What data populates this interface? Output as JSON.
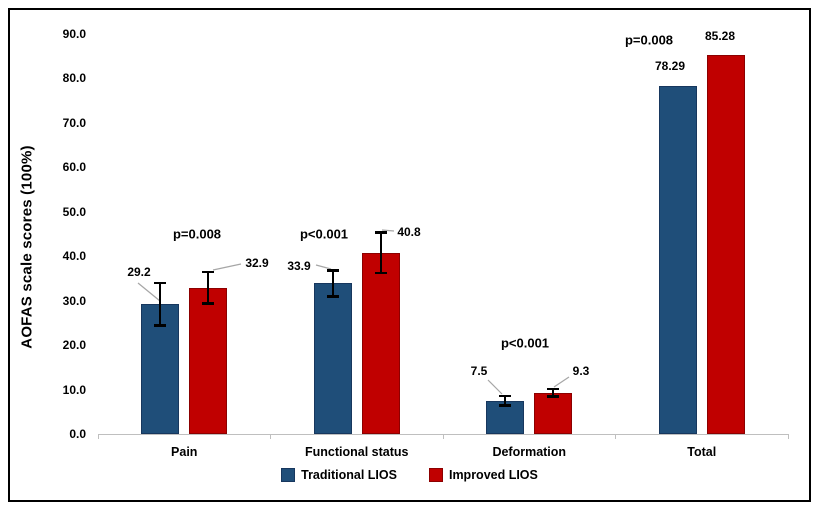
{
  "chart_data": {
    "type": "bar",
    "title": "",
    "xlabel": "",
    "ylabel": "AOFAS scale scores (100%)",
    "ylim": [
      0,
      90
    ],
    "ytick_step": 10,
    "yticks": [
      "0.0",
      "10.0",
      "20.0",
      "30.0",
      "40.0",
      "50.0",
      "60.0",
      "70.0",
      "80.0",
      "90.0"
    ],
    "categories": [
      "Pain",
      "Functional status",
      "Deformation",
      "Total"
    ],
    "series": [
      {
        "name": "Traditional LIOS",
        "color": "#1F4E79",
        "border_color": "#17375E",
        "values": [
          29.2,
          33.9,
          7.5,
          78.29
        ],
        "labels": [
          "29.2",
          "33.9",
          "7.5",
          "78.29"
        ],
        "errors": [
          4.8,
          3.0,
          1.1,
          0
        ]
      },
      {
        "name": "Improved LIOS",
        "color": "#C00000",
        "border_color": "#8C0000",
        "values": [
          32.9,
          40.8,
          9.3,
          85.28
        ],
        "labels": [
          "32.9",
          "40.8",
          "9.3",
          "85.28"
        ],
        "errors": [
          3.6,
          4.6,
          0.9,
          0
        ]
      }
    ],
    "annotations": [
      {
        "category": "Pain",
        "text": "p=0.008"
      },
      {
        "category": "Functional status",
        "text": "p<0.001"
      },
      {
        "category": "Deformation",
        "text": "p<0.001"
      },
      {
        "category": "Total",
        "text": "p=0.008"
      }
    ],
    "legend_position": "bottom",
    "grid": false,
    "axis_color": "#BFBFBF",
    "error_bar_color": "#000000",
    "leader_line_color": "#A6A6A6"
  }
}
